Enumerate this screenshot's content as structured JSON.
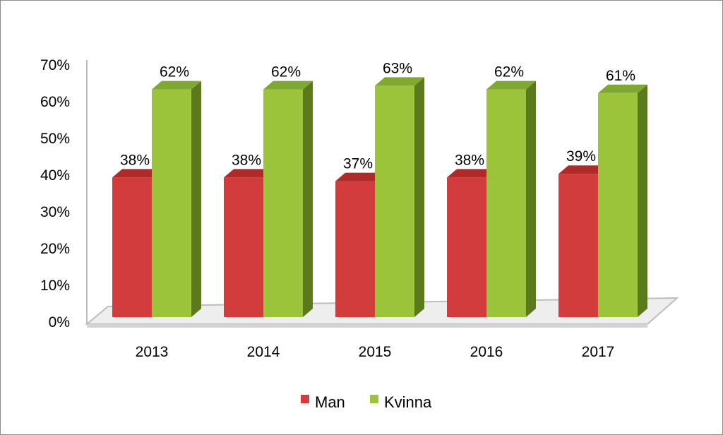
{
  "chart_data": {
    "type": "bar",
    "title": "",
    "xlabel": "",
    "ylabel": "",
    "categories": [
      "2013",
      "2014",
      "2015",
      "2016",
      "2017"
    ],
    "series": [
      {
        "name": "Man",
        "values": [
          38,
          38,
          37,
          38,
          39
        ],
        "labels": [
          "38%",
          "38%",
          "37%",
          "38%",
          "39%"
        ]
      },
      {
        "name": "Kvinna",
        "values": [
          62,
          62,
          63,
          62,
          61
        ],
        "labels": [
          "62%",
          "62%",
          "63%",
          "62%",
          "61%"
        ]
      }
    ],
    "ylim": [
      0,
      70
    ],
    "yticks": [
      "0%",
      "10%",
      "20%",
      "30%",
      "40%",
      "50%",
      "60%",
      "70%"
    ],
    "legend_position": "bottom",
    "grid": false,
    "style": "3d-column",
    "colors": {
      "Man": {
        "front": "#d23c3c",
        "side": "#8b1f1f",
        "top": "#b02a2a"
      },
      "Kvinna": {
        "front": "#9bc43a",
        "side": "#5a7a1c",
        "top": "#7fa830"
      }
    }
  }
}
